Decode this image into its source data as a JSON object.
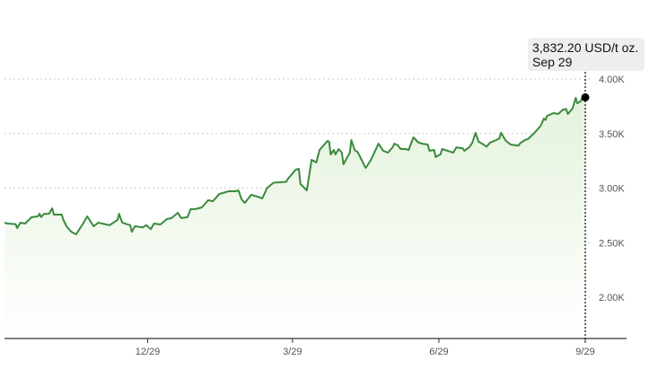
{
  "chart_data": {
    "type": "area",
    "title": "",
    "xlabel": "",
    "ylabel": "",
    "units": "USD/t oz.",
    "x_unit": "days since start (Sep 29 of prior year)",
    "xlim": [
      0,
      365
    ],
    "ylim": [
      1620,
      4250
    ],
    "y_ticks": [
      {
        "value": 2000,
        "label": "2.00K"
      },
      {
        "value": 2500,
        "label": "2.50K"
      },
      {
        "value": 3000,
        "label": "3.00K"
      },
      {
        "value": 3500,
        "label": "3.50K"
      },
      {
        "value": 4000,
        "label": "4.00K"
      }
    ],
    "x_ticks": [
      {
        "value": 90,
        "label": "12/29"
      },
      {
        "value": 181,
        "label": "3/29"
      },
      {
        "value": 273,
        "label": "6/29"
      },
      {
        "value": 365,
        "label": "9/29"
      }
    ],
    "grid": true,
    "line_color": "#3a8a3e",
    "fill_color": "#e6f3e0",
    "points": [
      [
        0,
        2683
      ],
      [
        2,
        2675
      ],
      [
        7,
        2670
      ],
      [
        8,
        2634
      ],
      [
        10,
        2683
      ],
      [
        13,
        2675
      ],
      [
        17,
        2733
      ],
      [
        21,
        2741
      ],
      [
        22,
        2765
      ],
      [
        23,
        2735
      ],
      [
        25,
        2765
      ],
      [
        28,
        2765
      ],
      [
        30,
        2815
      ],
      [
        31,
        2757
      ],
      [
        36,
        2757
      ],
      [
        37,
        2708
      ],
      [
        39,
        2650
      ],
      [
        42,
        2600
      ],
      [
        45,
        2576
      ],
      [
        49,
        2667
      ],
      [
        52,
        2741
      ],
      [
        56,
        2650
      ],
      [
        59,
        2683
      ],
      [
        64,
        2667
      ],
      [
        66,
        2660
      ],
      [
        71,
        2708
      ],
      [
        72,
        2765
      ],
      [
        74,
        2683
      ],
      [
        79,
        2660
      ],
      [
        80,
        2600
      ],
      [
        82,
        2650
      ],
      [
        87,
        2640
      ],
      [
        89,
        2660
      ],
      [
        92,
        2625
      ],
      [
        94,
        2675
      ],
      [
        98,
        2667
      ],
      [
        102,
        2716
      ],
      [
        105,
        2725
      ],
      [
        109,
        2774
      ],
      [
        111,
        2725
      ],
      [
        115,
        2733
      ],
      [
        117,
        2807
      ],
      [
        120,
        2807
      ],
      [
        124,
        2823
      ],
      [
        128,
        2889
      ],
      [
        131,
        2880
      ],
      [
        135,
        2946
      ],
      [
        139,
        2963
      ],
      [
        141,
        2971
      ],
      [
        145,
        2971
      ],
      [
        147,
        2979
      ],
      [
        149,
        2897
      ],
      [
        151,
        2864
      ],
      [
        155,
        2938
      ],
      [
        159,
        2922
      ],
      [
        162,
        2905
      ],
      [
        165,
        3000
      ],
      [
        169,
        3049
      ],
      [
        177,
        3058
      ],
      [
        178,
        3082
      ],
      [
        183,
        3169
      ],
      [
        185,
        3177
      ],
      [
        186,
        3037
      ],
      [
        190,
        2979
      ],
      [
        193,
        3259
      ],
      [
        196,
        3235
      ],
      [
        198,
        3350
      ],
      [
        203,
        3432
      ],
      [
        204,
        3425
      ],
      [
        205,
        3309
      ],
      [
        207,
        3350
      ],
      [
        208,
        3309
      ],
      [
        210,
        3358
      ],
      [
        212,
        3325
      ],
      [
        213,
        3218
      ],
      [
        217,
        3325
      ],
      [
        218,
        3440
      ],
      [
        220,
        3350
      ],
      [
        222,
        3330
      ],
      [
        225,
        3243
      ],
      [
        226,
        3210
      ],
      [
        227,
        3185
      ],
      [
        230,
        3250
      ],
      [
        233,
        3342
      ],
      [
        235,
        3407
      ],
      [
        238,
        3342
      ],
      [
        241,
        3325
      ],
      [
        244,
        3375
      ],
      [
        245,
        3407
      ],
      [
        247,
        3395
      ],
      [
        249,
        3358
      ],
      [
        252,
        3358
      ],
      [
        254,
        3350
      ],
      [
        257,
        3465
      ],
      [
        260,
        3420
      ],
      [
        263,
        3405
      ],
      [
        266,
        3400
      ],
      [
        267,
        3342
      ],
      [
        270,
        3350
      ],
      [
        271,
        3284
      ],
      [
        274,
        3310
      ],
      [
        275,
        3358
      ],
      [
        281,
        3330
      ],
      [
        282,
        3325
      ],
      [
        284,
        3374
      ],
      [
        288,
        3365
      ],
      [
        289,
        3342
      ],
      [
        292,
        3374
      ],
      [
        294,
        3416
      ],
      [
        296,
        3506
      ],
      [
        298,
        3425
      ],
      [
        301,
        3400
      ],
      [
        303,
        3380
      ],
      [
        305,
        3415
      ],
      [
        309,
        3440
      ],
      [
        311,
        3455
      ],
      [
        312,
        3506
      ],
      [
        315,
        3435
      ],
      [
        318,
        3400
      ],
      [
        320,
        3395
      ],
      [
        323,
        3390
      ],
      [
        324,
        3410
      ],
      [
        327,
        3440
      ],
      [
        329,
        3450
      ],
      [
        333,
        3506
      ],
      [
        337,
        3572
      ],
      [
        339,
        3638
      ],
      [
        340,
        3625
      ],
      [
        341,
        3662
      ],
      [
        345,
        3687
      ],
      [
        348,
        3680
      ],
      [
        351,
        3720
      ],
      [
        353,
        3725
      ],
      [
        354,
        3679
      ],
      [
        357,
        3730
      ],
      [
        359,
        3827
      ],
      [
        360,
        3778
      ],
      [
        362,
        3795
      ],
      [
        363,
        3825
      ],
      [
        365,
        3832.2
      ]
    ],
    "highlight": {
      "day": 365,
      "value": 3832.2,
      "value_label": "3,832.20 USD/t oz.",
      "date_label": "Sep 29"
    }
  }
}
